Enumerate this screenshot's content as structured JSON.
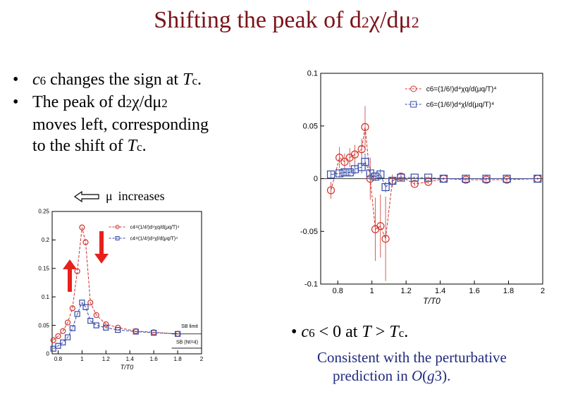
{
  "title": {
    "prefix": "Shifting the peak of d",
    "sub1": "2",
    "chi": "χ",
    "mid": "/dμ",
    "sub2": "2"
  },
  "bullets": {
    "b1": {
      "c": "c",
      "c_sub": "6",
      "text": " changes the sign at ",
      "t": "T",
      "t_sub": "c",
      "end": "."
    },
    "b2": {
      "line1_a": "The peak of d",
      "sub1": "2",
      "chi": "χ/dμ",
      "sub2": "2",
      "line2": "moves left, corresponding",
      "line3_a": "to the shift of ",
      "t": "T",
      "t_sub": "c",
      "end": "."
    }
  },
  "mu_increases": {
    "mu": "μ",
    "label": "increases"
  },
  "bottom_bullet": {
    "c": "c",
    "c_sub": "6",
    "mid": " < 0 at ",
    "t": "T",
    "gt": " > ",
    "t2": "T",
    "t_sub": "c",
    "end": "."
  },
  "note": {
    "line1": "Consistent with the perturbative",
    "line2_a": "prediction in ",
    "o": "O",
    "paren_open": "(",
    "g": "g",
    "g_sub": "3",
    "paren_close": ")."
  },
  "colors": {
    "title": "#7a1218",
    "red_series": "#d0342c",
    "blue_series": "#3348a8",
    "note": "#1f2a80",
    "arrow_red": "#e8201c"
  },
  "chart_data": [
    {
      "type": "line",
      "xlabel": "T/T0",
      "xlim": [
        0.7,
        2.0
      ],
      "ylim": [
        -0.1,
        0.1
      ],
      "xticks": [
        "0.8",
        "1",
        "1.2",
        "1.4",
        "1.6",
        "1.8",
        "2"
      ],
      "yticks": [
        "0.1",
        "0.05",
        "0",
        "-0.05",
        "-0.1"
      ],
      "legend_position": "top-right",
      "series": [
        {
          "name": "c6=(1/6!)d⁴χq/d(μq/T)⁴",
          "color": "red",
          "marker": "circle",
          "x": [
            0.76,
            0.81,
            0.84,
            0.87,
            0.9,
            0.94,
            0.96,
            0.99,
            1.02,
            1.05,
            1.08,
            1.12,
            1.17,
            1.25,
            1.33,
            1.42,
            1.55,
            1.67,
            1.79,
            1.97
          ],
          "y": [
            -0.011,
            0.02,
            0.016,
            0.02,
            0.023,
            0.028,
            0.049,
            0.0,
            -0.048,
            -0.045,
            -0.057,
            -0.002,
            0.002,
            -0.005,
            -0.003,
            0.0,
            -0.001,
            -0.001,
            -0.001,
            0.0
          ],
          "err": [
            0.008,
            0.01,
            0.008,
            0.009,
            0.009,
            0.01,
            0.02,
            0.02,
            0.03,
            0.03,
            0.04,
            0.006,
            0.003,
            0.002,
            0.002,
            0.001,
            0.001,
            0.001,
            0.001,
            0.001
          ]
        },
        {
          "name": "c6=(1/6!)d⁴χl/d(μq/T)⁴",
          "color": "blue",
          "marker": "square",
          "x": [
            0.76,
            0.81,
            0.84,
            0.87,
            0.9,
            0.94,
            0.96,
            0.99,
            1.02,
            1.05,
            1.08,
            1.12,
            1.17,
            1.25,
            1.33,
            1.42,
            1.55,
            1.67,
            1.79,
            1.97
          ],
          "y": [
            0.004,
            0.005,
            0.006,
            0.006,
            0.009,
            0.011,
            0.016,
            0.005,
            0.002,
            0.004,
            -0.008,
            -0.002,
            0.001,
            0.001,
            0.001,
            0.0,
            0.0,
            0.0,
            0.0,
            0.0
          ],
          "err": [
            0.003,
            0.004,
            0.004,
            0.004,
            0.005,
            0.006,
            0.008,
            0.006,
            0.004,
            0.005,
            0.005,
            0.003,
            0.002,
            0.001,
            0.001,
            0.001,
            0.001,
            0.001,
            0.001,
            0.001
          ]
        }
      ]
    },
    {
      "type": "line",
      "xlabel": "T/T0",
      "xlim": [
        0.75,
        2.0
      ],
      "ylim": [
        0.0,
        0.25
      ],
      "xticks": [
        "0.8",
        "1",
        "1.2",
        "1.4",
        "1.6",
        "1.8",
        "2"
      ],
      "yticks": [
        "0.25",
        "0.2",
        "0.15",
        "0.1",
        "0.05",
        "0"
      ],
      "legend_position": "top-right",
      "annotations": [
        "SB limit",
        "SB (Nt=4)"
      ],
      "series": [
        {
          "name": "c4=(1/4!)d⁴χq/d(μq/T)⁴",
          "color": "red",
          "marker": "circle",
          "x": [
            0.76,
            0.8,
            0.84,
            0.88,
            0.92,
            0.96,
            1.0,
            1.03,
            1.07,
            1.12,
            1.2,
            1.3,
            1.45,
            1.6,
            1.8
          ],
          "y": [
            0.024,
            0.031,
            0.04,
            0.055,
            0.08,
            0.145,
            0.222,
            0.196,
            0.09,
            0.068,
            0.052,
            0.046,
            0.04,
            0.038,
            0.035
          ]
        },
        {
          "name": "c4=(1/4!)d⁴χl/d(μq/T)⁴",
          "color": "blue",
          "marker": "square",
          "x": [
            0.76,
            0.8,
            0.84,
            0.88,
            0.92,
            0.96,
            1.0,
            1.03,
            1.07,
            1.12,
            1.2,
            1.3,
            1.45,
            1.6,
            1.8
          ],
          "y": [
            0.009,
            0.014,
            0.02,
            0.029,
            0.045,
            0.07,
            0.09,
            0.082,
            0.058,
            0.05,
            0.046,
            0.042,
            0.039,
            0.037,
            0.035
          ]
        }
      ]
    }
  ]
}
